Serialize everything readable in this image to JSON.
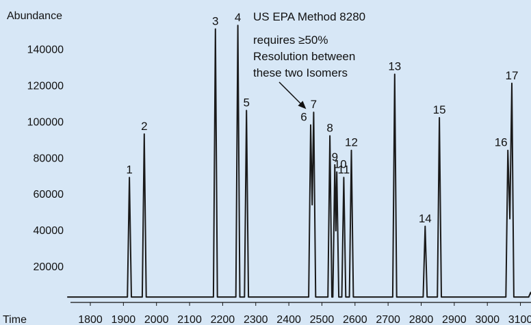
{
  "chart_data": {
    "type": "line",
    "ylabel": "Abundance",
    "xlabel": "Time",
    "xlim": [
      1730,
      3140
    ],
    "ylim": [
      0,
      158000
    ],
    "x_ticks": [
      1800,
      1900,
      2000,
      2100,
      2200,
      2300,
      2400,
      2500,
      2600,
      2700,
      2800,
      2900,
      3000,
      3100
    ],
    "y_ticks": [
      20000,
      40000,
      60000,
      80000,
      100000,
      120000,
      140000
    ],
    "baseline": 3000,
    "line_color": "#1a1a1a",
    "peaks": [
      {
        "label": "1",
        "x": 1918,
        "y": 69000
      },
      {
        "label": "2",
        "x": 1963,
        "y": 93000
      },
      {
        "label": "3",
        "x": 2178,
        "y": 151000
      },
      {
        "label": "4",
        "x": 2246,
        "y": 153000
      },
      {
        "label": "5",
        "x": 2272,
        "y": 106000
      },
      {
        "label": "6",
        "x": 2466,
        "y": 98000
      },
      {
        "label": "7",
        "x": 2475,
        "y": 105000
      },
      {
        "label": "8",
        "x": 2524,
        "y": 92000
      },
      {
        "label": "9",
        "x": 2539,
        "y": 76000
      },
      {
        "label": "10",
        "x": 2545,
        "y": 72000
      },
      {
        "label": "11",
        "x": 2566,
        "y": 69000
      },
      {
        "label": "12",
        "x": 2589,
        "y": 84000
      },
      {
        "label": "13",
        "x": 2720,
        "y": 126000
      },
      {
        "label": "14",
        "x": 2812,
        "y": 42000
      },
      {
        "label": "15",
        "x": 2855,
        "y": 102000
      },
      {
        "label": "16",
        "x": 3062,
        "y": 84000
      },
      {
        "label": "17",
        "x": 3074,
        "y": 121000
      }
    ],
    "annotations": [
      "US EPA Method 8280",
      "requires ≥50%",
      "Resolution between",
      "these two Isomers"
    ]
  }
}
